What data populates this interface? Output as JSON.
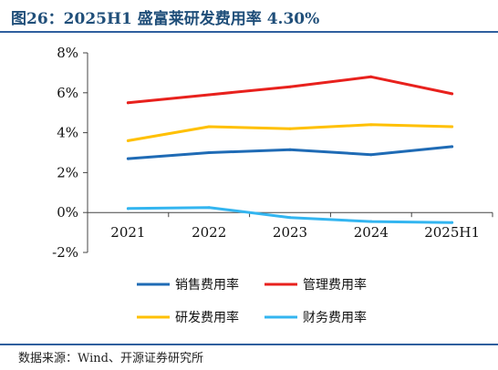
{
  "title": "图26：2025H1 盛富莱研发费用率 4.30%",
  "source": "数据来源：Wind、开源证券研究所",
  "chart_data": {
    "type": "line",
    "categories": [
      "2021",
      "2022",
      "2023",
      "2024",
      "2025H1"
    ],
    "ylim": [
      -2,
      8
    ],
    "yticks": [
      -2,
      0,
      2,
      4,
      6,
      8
    ],
    "ytick_labels": [
      "-2%",
      "0%",
      "2%",
      "4%",
      "6%",
      "8%"
    ],
    "grid": false,
    "legend_position": "bottom",
    "series": [
      {
        "name": "销售费用率",
        "color": "#1f6bb5",
        "values": [
          2.7,
          3.0,
          3.15,
          2.9,
          3.3
        ]
      },
      {
        "name": "管理费用率",
        "color": "#e8211d",
        "values": [
          5.5,
          5.9,
          6.3,
          6.8,
          5.95
        ]
      },
      {
        "name": "研发费用率",
        "color": "#ffc000",
        "values": [
          3.6,
          4.3,
          4.2,
          4.4,
          4.3
        ]
      },
      {
        "name": "财务费用率",
        "color": "#33b5f0",
        "values": [
          0.2,
          0.25,
          -0.25,
          -0.45,
          -0.5
        ]
      }
    ]
  }
}
